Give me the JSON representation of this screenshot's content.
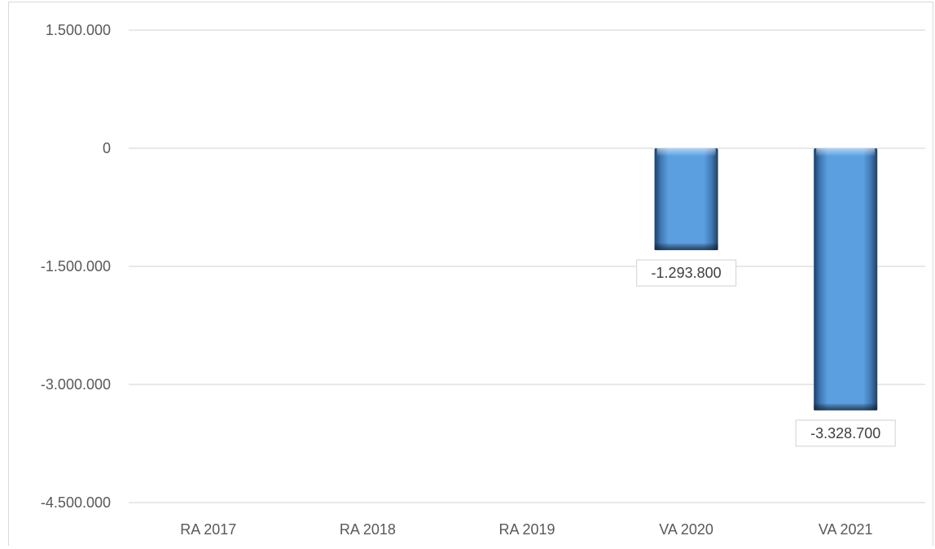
{
  "chart_data": {
    "type": "bar",
    "categories": [
      "RA 2017",
      "RA 2018",
      "RA 2019",
      "VA 2020",
      "VA 2021"
    ],
    "values": [
      null,
      null,
      null,
      -1293800,
      -3328700
    ],
    "data_labels": [
      "",
      "",
      "",
      "-1.293.800",
      "-3.328.700"
    ],
    "ylim": [
      -4500000,
      1500000
    ],
    "yticks": [
      1500000,
      0,
      -1500000,
      -3000000,
      -4500000
    ],
    "ytick_labels": [
      "1.500.000",
      "0",
      "-1.500.000",
      "-3.000.000",
      "-4.500.000"
    ],
    "title": "",
    "xlabel": "",
    "ylabel": "",
    "grid": true,
    "legend": "none",
    "bar_color": "#5b9bd5",
    "gridline_color": "#d9d9d9"
  }
}
